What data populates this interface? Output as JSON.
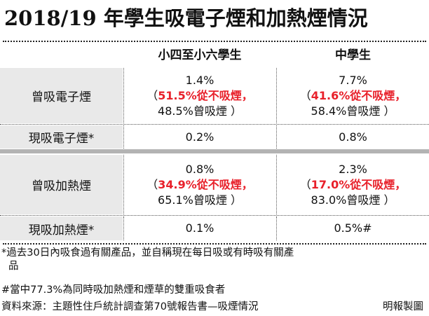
{
  "title": "2018/19 年學生吸電子煙和加熱煙情況",
  "headers": [
    "小四至小六學生",
    "中學生"
  ],
  "rows": [
    {
      "label": "曾吸電子煙",
      "col1": {
        "line1": "1.4%",
        "open": "（",
        "red": "51.5%從不吸煙，",
        "line3": "48.5%曾吸煙 ）"
      },
      "col2": {
        "line1": "7.7%",
        "open": "（",
        "red": "41.6%從不吸煙，",
        "line3": "58.4%曾吸煙 ）"
      }
    },
    {
      "label": "現吸電子煙*",
      "col1": {
        "line1": "0.2%"
      },
      "col2": {
        "line1": "0.8%"
      }
    },
    {
      "label": "曾吸加熱煙",
      "col1": {
        "line1": "0.8%",
        "open": "（",
        "red": "34.9%從不吸煙，",
        "line3": "65.1%曾吸煙 ）"
      },
      "col2": {
        "line1": "2.3%",
        "open": "（",
        "red": "17.0%從不吸煙，",
        "line3": "83.0%曾吸煙 ）"
      }
    },
    {
      "label": "現吸加熱煙*",
      "col1": {
        "line1": "0.1%"
      },
      "col2": {
        "line1": "0.5%#"
      }
    }
  ],
  "footnotes": {
    "star_line1": "*過去30日內吸食過有關產品，並自稱現在每日吸或有時吸有關產",
    "star_line2": "品",
    "hash": "#當中77.3%為同時吸加熱煙和煙草的雙重吸食者",
    "source": "資料來源：主題性住戶統計調查第70號報告書—吸煙情況",
    "credit": "明報製圖"
  },
  "colors": {
    "accent_red": "#e8202a",
    "label_bg": "#e9e9e9",
    "separator_gray": "#b3b3b3"
  }
}
